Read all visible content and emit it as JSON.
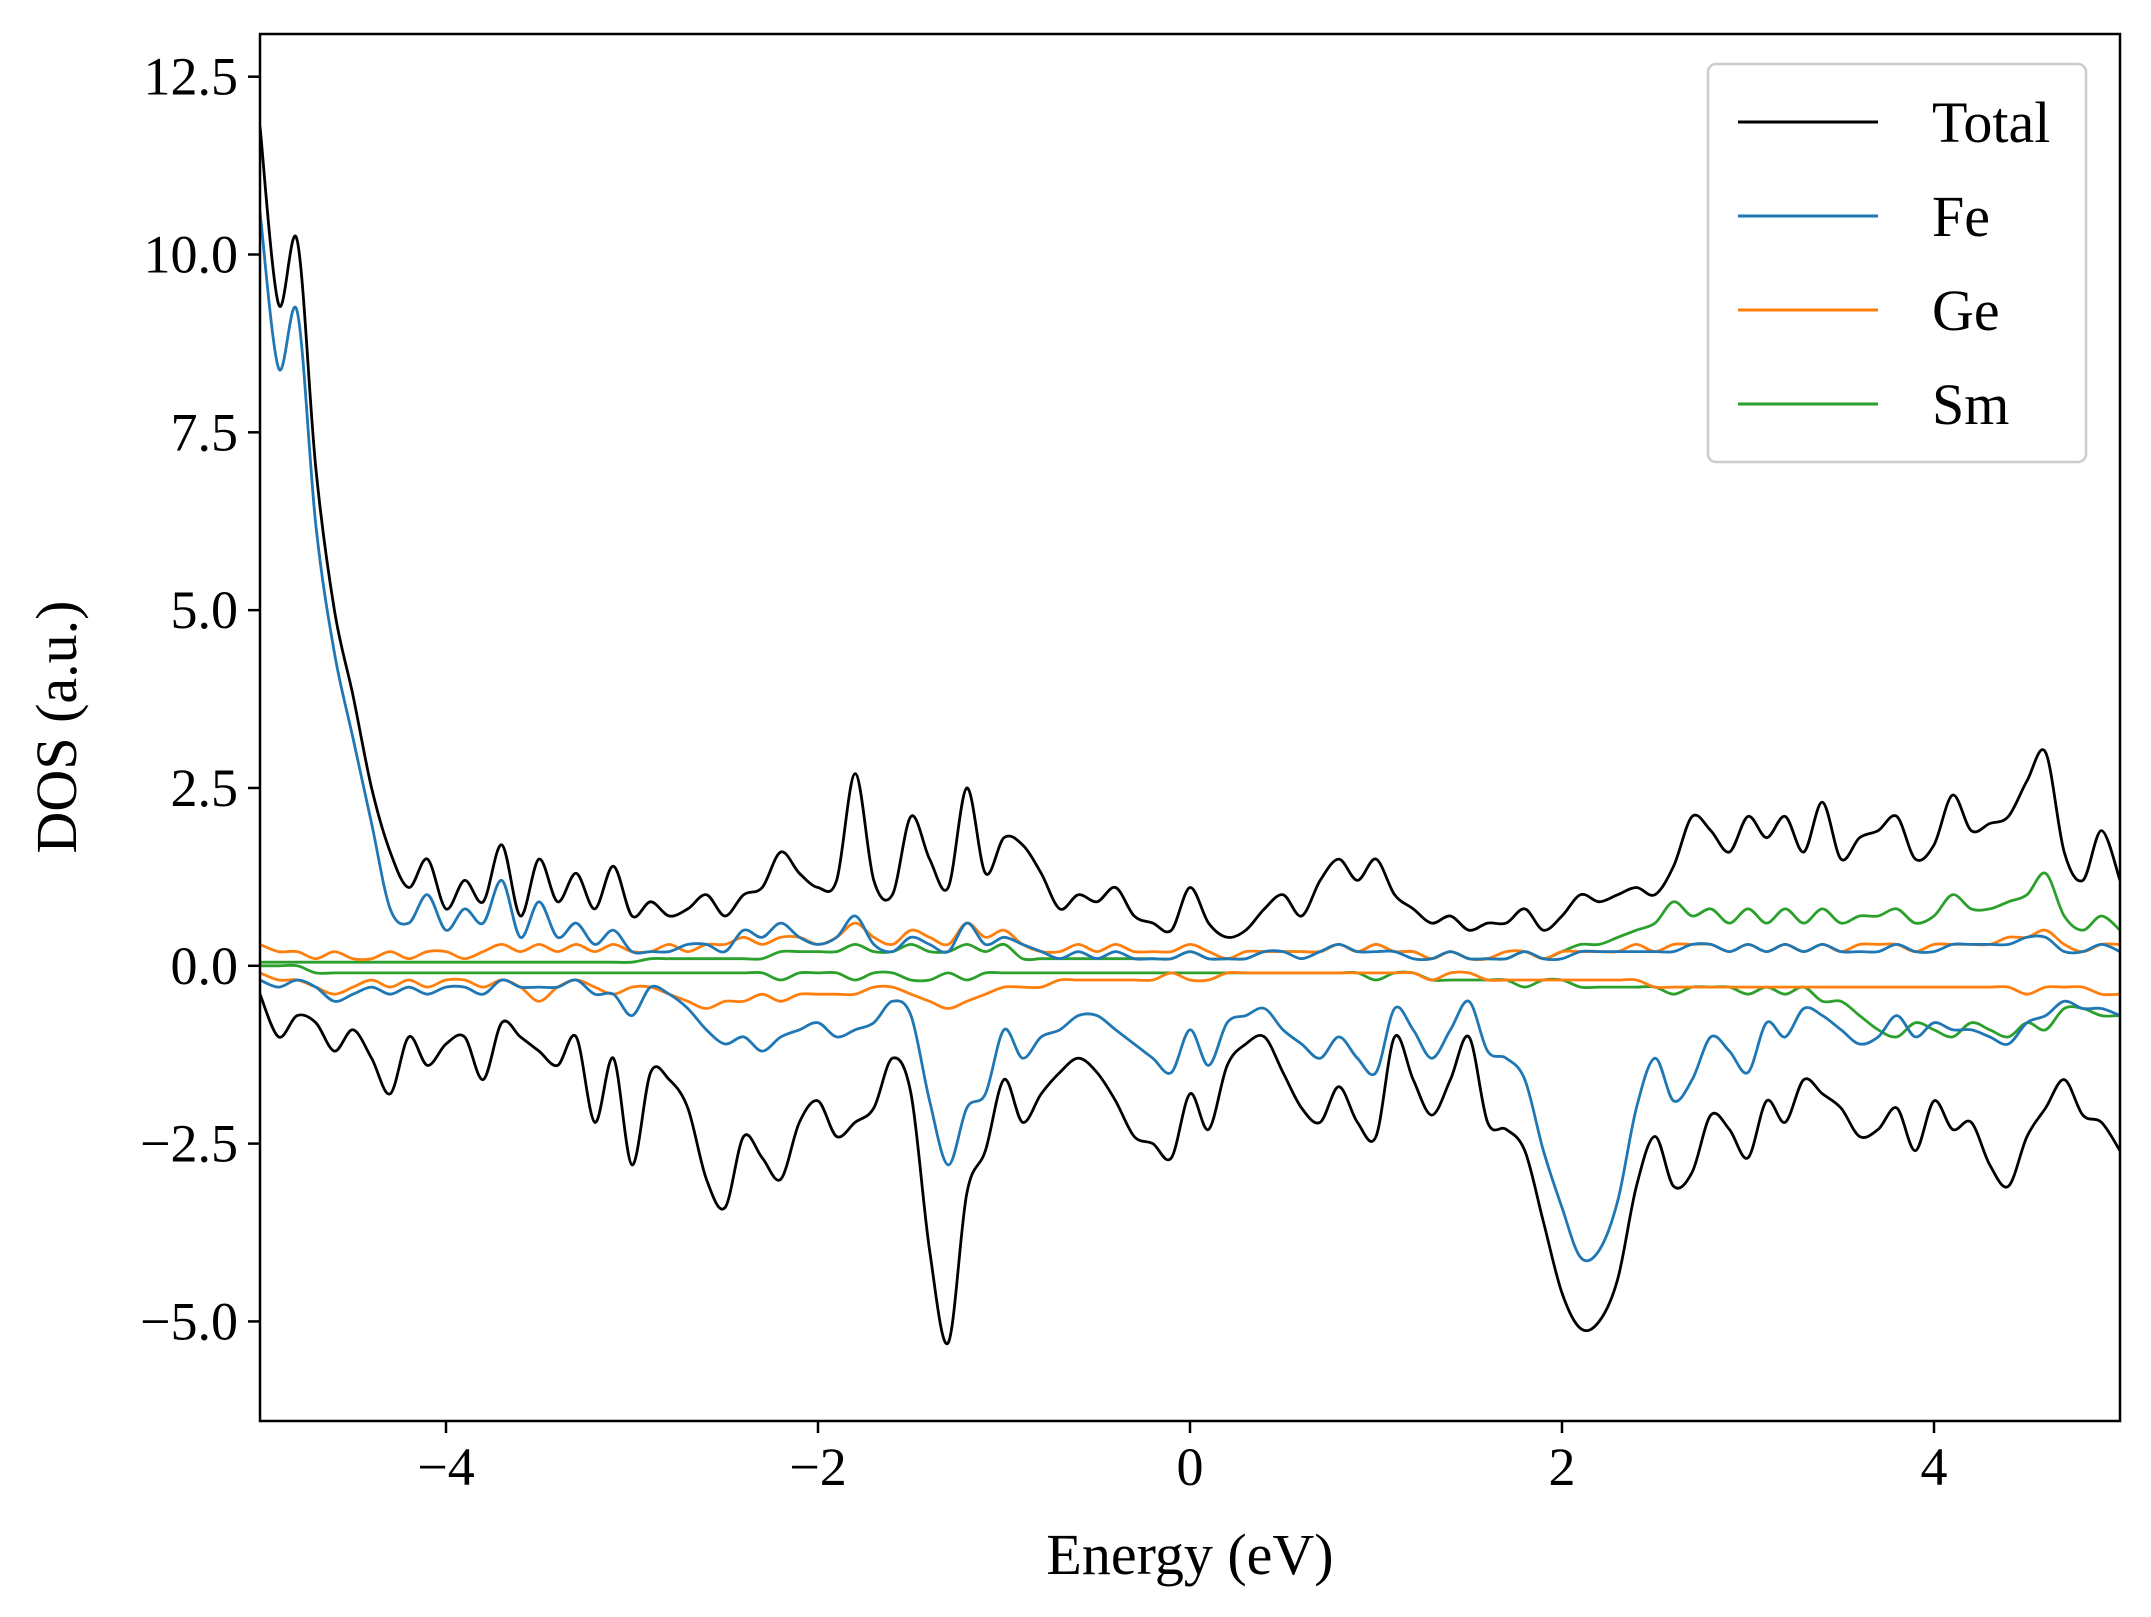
{
  "chart_data": {
    "type": "line",
    "xlabel": "Energy (eV)",
    "ylabel": "DOS (a.u.)",
    "xlim": [
      -5.0,
      5.0
    ],
    "ylim": [
      -6.4,
      13.1
    ],
    "grid": false,
    "legend_position": "top-right",
    "x_ticks": [
      -4,
      -2,
      0,
      2,
      4
    ],
    "x_tick_labels": [
      "−4",
      "−2",
      "0",
      "2",
      "4"
    ],
    "y_ticks": [
      -5.0,
      -2.5,
      0.0,
      2.5,
      5.0,
      7.5,
      10.0,
      12.5
    ],
    "y_tick_labels": [
      "−5.0",
      "−2.5",
      "0.0",
      "2.5",
      "5.0",
      "7.5",
      "10.0",
      "12.5"
    ],
    "x": [
      -5.0,
      -4.9,
      -4.8,
      -4.7,
      -4.6,
      -4.5,
      -4.4,
      -4.3,
      -4.2,
      -4.1,
      -4.0,
      -3.9,
      -3.8,
      -3.7,
      -3.6,
      -3.5,
      -3.4,
      -3.3,
      -3.2,
      -3.1,
      -3.0,
      -2.9,
      -2.8,
      -2.7,
      -2.6,
      -2.5,
      -2.4,
      -2.3,
      -2.2,
      -2.1,
      -2.0,
      -1.9,
      -1.8,
      -1.7,
      -1.6,
      -1.5,
      -1.4,
      -1.3,
      -1.2,
      -1.1,
      -1.0,
      -0.9,
      -0.8,
      -0.7,
      -0.6,
      -0.5,
      -0.4,
      -0.3,
      -0.2,
      -0.1,
      0.0,
      0.1,
      0.2,
      0.3,
      0.4,
      0.5,
      0.6,
      0.7,
      0.8,
      0.9,
      1.0,
      1.1,
      1.2,
      1.3,
      1.4,
      1.5,
      1.6,
      1.7,
      1.8,
      1.9,
      2.0,
      2.1,
      2.2,
      2.3,
      2.4,
      2.5,
      2.6,
      2.7,
      2.8,
      2.9,
      3.0,
      3.1,
      3.2,
      3.3,
      3.4,
      3.5,
      3.6,
      3.7,
      3.8,
      3.9,
      4.0,
      4.1,
      4.2,
      4.3,
      4.4,
      4.5,
      4.6,
      4.7,
      4.8,
      4.9,
      5.0
    ],
    "series": [
      {
        "name": "Total",
        "color": "#000000",
        "values_up": [
          11.8,
          9.3,
          10.2,
          7.0,
          5.0,
          3.8,
          2.5,
          1.6,
          1.1,
          1.5,
          0.8,
          1.2,
          0.9,
          1.7,
          0.7,
          1.5,
          0.9,
          1.3,
          0.8,
          1.4,
          0.7,
          0.9,
          0.7,
          0.8,
          1.0,
          0.7,
          1.0,
          1.1,
          1.6,
          1.3,
          1.1,
          1.2,
          2.7,
          1.2,
          1.0,
          2.1,
          1.5,
          1.1,
          2.5,
          1.3,
          1.8,
          1.7,
          1.3,
          0.8,
          1.0,
          0.9,
          1.1,
          0.7,
          0.6,
          0.5,
          1.1,
          0.6,
          0.4,
          0.5,
          0.8,
          1.0,
          0.7,
          1.2,
          1.5,
          1.2,
          1.5,
          1.0,
          0.8,
          0.6,
          0.7,
          0.5,
          0.6,
          0.6,
          0.8,
          0.5,
          0.7,
          1.0,
          0.9,
          1.0,
          1.1,
          1.0,
          1.4,
          2.1,
          1.9,
          1.6,
          2.1,
          1.8,
          2.1,
          1.6,
          2.3,
          1.5,
          1.8,
          1.9,
          2.1,
          1.5,
          1.7,
          2.4,
          1.9,
          2.0,
          2.1,
          2.6,
          3.0,
          1.6,
          1.2,
          1.9,
          1.2
        ],
        "values_down": [
          -0.4,
          -1.0,
          -0.7,
          -0.8,
          -1.2,
          -0.9,
          -1.3,
          -1.8,
          -1.0,
          -1.4,
          -1.1,
          -1.0,
          -1.6,
          -0.8,
          -1.0,
          -1.2,
          -1.4,
          -1.0,
          -2.2,
          -1.3,
          -2.8,
          -1.5,
          -1.6,
          -2.0,
          -3.0,
          -3.4,
          -2.4,
          -2.7,
          -3.0,
          -2.2,
          -1.9,
          -2.4,
          -2.2,
          -2.0,
          -1.3,
          -1.8,
          -4.0,
          -5.3,
          -3.2,
          -2.6,
          -1.6,
          -2.2,
          -1.8,
          -1.5,
          -1.3,
          -1.5,
          -1.9,
          -2.4,
          -2.5,
          -2.7,
          -1.8,
          -2.3,
          -1.4,
          -1.1,
          -1.0,
          -1.5,
          -2.0,
          -2.2,
          -1.7,
          -2.2,
          -2.4,
          -1.0,
          -1.6,
          -2.1,
          -1.6,
          -1.0,
          -2.2,
          -2.3,
          -2.6,
          -3.6,
          -4.6,
          -5.1,
          -5.0,
          -4.4,
          -3.1,
          -2.4,
          -3.1,
          -2.9,
          -2.1,
          -2.3,
          -2.7,
          -1.9,
          -2.2,
          -1.6,
          -1.8,
          -2.0,
          -2.4,
          -2.3,
          -2.0,
          -2.6,
          -1.9,
          -2.3,
          -2.2,
          -2.8,
          -3.1,
          -2.4,
          -2.0,
          -1.6,
          -2.1,
          -2.2,
          -2.6
        ]
      },
      {
        "name": "Fe",
        "color": "#1f77b4",
        "values_up": [
          10.6,
          8.4,
          9.2,
          6.2,
          4.4,
          3.2,
          2.0,
          0.8,
          0.6,
          1.0,
          0.5,
          0.8,
          0.6,
          1.2,
          0.4,
          0.9,
          0.4,
          0.6,
          0.3,
          0.5,
          0.2,
          0.2,
          0.2,
          0.3,
          0.3,
          0.2,
          0.5,
          0.4,
          0.6,
          0.4,
          0.3,
          0.4,
          0.7,
          0.3,
          0.2,
          0.4,
          0.3,
          0.2,
          0.6,
          0.3,
          0.4,
          0.3,
          0.2,
          0.1,
          0.2,
          0.1,
          0.2,
          0.1,
          0.1,
          0.1,
          0.2,
          0.1,
          0.1,
          0.1,
          0.2,
          0.2,
          0.1,
          0.2,
          0.3,
          0.2,
          0.2,
          0.2,
          0.1,
          0.1,
          0.2,
          0.1,
          0.1,
          0.1,
          0.2,
          0.1,
          0.1,
          0.2,
          0.2,
          0.2,
          0.2,
          0.2,
          0.2,
          0.3,
          0.3,
          0.2,
          0.3,
          0.2,
          0.3,
          0.2,
          0.3,
          0.2,
          0.2,
          0.2,
          0.3,
          0.2,
          0.2,
          0.3,
          0.3,
          0.3,
          0.3,
          0.4,
          0.4,
          0.2,
          0.2,
          0.3,
          0.2
        ],
        "values_down": [
          -0.2,
          -0.3,
          -0.2,
          -0.3,
          -0.5,
          -0.4,
          -0.3,
          -0.4,
          -0.3,
          -0.4,
          -0.3,
          -0.3,
          -0.4,
          -0.2,
          -0.3,
          -0.3,
          -0.3,
          -0.2,
          -0.4,
          -0.4,
          -0.7,
          -0.3,
          -0.4,
          -0.6,
          -0.9,
          -1.1,
          -1.0,
          -1.2,
          -1.0,
          -0.9,
          -0.8,
          -1.0,
          -0.9,
          -0.8,
          -0.5,
          -0.7,
          -1.9,
          -2.8,
          -2.0,
          -1.8,
          -0.9,
          -1.3,
          -1.0,
          -0.9,
          -0.7,
          -0.7,
          -0.9,
          -1.1,
          -1.3,
          -1.5,
          -0.9,
          -1.4,
          -0.8,
          -0.7,
          -0.6,
          -0.9,
          -1.1,
          -1.3,
          -1.0,
          -1.3,
          -1.5,
          -0.6,
          -0.9,
          -1.3,
          -0.9,
          -0.5,
          -1.2,
          -1.3,
          -1.6,
          -2.6,
          -3.4,
          -4.1,
          -4.0,
          -3.3,
          -2.0,
          -1.3,
          -1.9,
          -1.6,
          -1.0,
          -1.2,
          -1.5,
          -0.8,
          -1.0,
          -0.6,
          -0.7,
          -0.9,
          -1.1,
          -1.0,
          -0.7,
          -1.0,
          -0.8,
          -0.9,
          -0.9,
          -1.0,
          -1.1,
          -0.8,
          -0.7,
          -0.5,
          -0.6,
          -0.6,
          -0.7
        ]
      },
      {
        "name": "Ge",
        "color": "#ff7f0e",
        "values_up": [
          0.3,
          0.2,
          0.2,
          0.1,
          0.2,
          0.1,
          0.1,
          0.2,
          0.1,
          0.2,
          0.2,
          0.1,
          0.2,
          0.3,
          0.2,
          0.3,
          0.2,
          0.3,
          0.2,
          0.3,
          0.2,
          0.2,
          0.3,
          0.2,
          0.3,
          0.3,
          0.4,
          0.3,
          0.4,
          0.4,
          0.3,
          0.4,
          0.6,
          0.4,
          0.3,
          0.5,
          0.4,
          0.3,
          0.6,
          0.4,
          0.5,
          0.3,
          0.2,
          0.2,
          0.3,
          0.2,
          0.3,
          0.2,
          0.2,
          0.2,
          0.3,
          0.2,
          0.1,
          0.2,
          0.2,
          0.2,
          0.2,
          0.2,
          0.3,
          0.2,
          0.3,
          0.2,
          0.2,
          0.1,
          0.2,
          0.1,
          0.1,
          0.2,
          0.2,
          0.1,
          0.2,
          0.2,
          0.2,
          0.2,
          0.3,
          0.2,
          0.3,
          0.3,
          0.3,
          0.2,
          0.3,
          0.2,
          0.3,
          0.2,
          0.3,
          0.2,
          0.3,
          0.3,
          0.3,
          0.2,
          0.3,
          0.3,
          0.3,
          0.3,
          0.4,
          0.4,
          0.5,
          0.3,
          0.2,
          0.3,
          0.3
        ],
        "values_down": [
          -0.1,
          -0.2,
          -0.2,
          -0.3,
          -0.4,
          -0.3,
          -0.2,
          -0.3,
          -0.2,
          -0.3,
          -0.2,
          -0.2,
          -0.3,
          -0.2,
          -0.3,
          -0.5,
          -0.3,
          -0.2,
          -0.3,
          -0.4,
          -0.3,
          -0.3,
          -0.4,
          -0.5,
          -0.6,
          -0.5,
          -0.5,
          -0.4,
          -0.5,
          -0.4,
          -0.4,
          -0.4,
          -0.4,
          -0.3,
          -0.3,
          -0.4,
          -0.5,
          -0.6,
          -0.5,
          -0.4,
          -0.3,
          -0.3,
          -0.3,
          -0.2,
          -0.2,
          -0.2,
          -0.2,
          -0.2,
          -0.2,
          -0.1,
          -0.2,
          -0.2,
          -0.1,
          -0.1,
          -0.1,
          -0.1,
          -0.1,
          -0.1,
          -0.1,
          -0.1,
          -0.1,
          -0.1,
          -0.1,
          -0.2,
          -0.1,
          -0.1,
          -0.2,
          -0.2,
          -0.2,
          -0.2,
          -0.2,
          -0.2,
          -0.2,
          -0.2,
          -0.2,
          -0.3,
          -0.3,
          -0.3,
          -0.3,
          -0.3,
          -0.3,
          -0.3,
          -0.3,
          -0.3,
          -0.3,
          -0.3,
          -0.3,
          -0.3,
          -0.3,
          -0.3,
          -0.3,
          -0.3,
          -0.3,
          -0.3,
          -0.3,
          -0.4,
          -0.3,
          -0.3,
          -0.3,
          -0.4,
          -0.4
        ]
      },
      {
        "name": "Sm",
        "color": "#2ca02c",
        "values_up": [
          0.05,
          0.05,
          0.05,
          0.05,
          0.05,
          0.05,
          0.05,
          0.05,
          0.05,
          0.05,
          0.05,
          0.05,
          0.05,
          0.05,
          0.05,
          0.05,
          0.05,
          0.05,
          0.05,
          0.05,
          0.05,
          0.1,
          0.1,
          0.1,
          0.1,
          0.1,
          0.1,
          0.1,
          0.2,
          0.2,
          0.2,
          0.2,
          0.3,
          0.2,
          0.2,
          0.3,
          0.2,
          0.2,
          0.3,
          0.2,
          0.3,
          0.1,
          0.1,
          0.1,
          0.1,
          0.1,
          0.1,
          0.1,
          0.1,
          0.1,
          0.2,
          0.1,
          0.1,
          0.1,
          0.2,
          0.2,
          0.2,
          0.2,
          0.3,
          0.2,
          0.3,
          0.2,
          0.2,
          0.1,
          0.2,
          0.1,
          0.1,
          0.1,
          0.2,
          0.1,
          0.2,
          0.3,
          0.3,
          0.4,
          0.5,
          0.6,
          0.9,
          0.7,
          0.8,
          0.6,
          0.8,
          0.6,
          0.8,
          0.6,
          0.8,
          0.6,
          0.7,
          0.7,
          0.8,
          0.6,
          0.7,
          1.0,
          0.8,
          0.8,
          0.9,
          1.0,
          1.3,
          0.7,
          0.5,
          0.7,
          0.5
        ],
        "values_down": [
          0.0,
          0.0,
          0.0,
          -0.1,
          -0.1,
          -0.1,
          -0.1,
          -0.1,
          -0.1,
          -0.1,
          -0.1,
          -0.1,
          -0.1,
          -0.1,
          -0.1,
          -0.1,
          -0.1,
          -0.1,
          -0.1,
          -0.1,
          -0.1,
          -0.1,
          -0.1,
          -0.1,
          -0.1,
          -0.1,
          -0.1,
          -0.1,
          -0.2,
          -0.1,
          -0.1,
          -0.1,
          -0.2,
          -0.1,
          -0.1,
          -0.2,
          -0.2,
          -0.1,
          -0.2,
          -0.1,
          -0.1,
          -0.1,
          -0.1,
          -0.1,
          -0.1,
          -0.1,
          -0.1,
          -0.1,
          -0.1,
          -0.1,
          -0.1,
          -0.1,
          -0.1,
          -0.1,
          -0.1,
          -0.1,
          -0.1,
          -0.1,
          -0.1,
          -0.1,
          -0.2,
          -0.1,
          -0.1,
          -0.2,
          -0.2,
          -0.2,
          -0.2,
          -0.2,
          -0.3,
          -0.2,
          -0.2,
          -0.3,
          -0.3,
          -0.3,
          -0.3,
          -0.3,
          -0.4,
          -0.3,
          -0.3,
          -0.3,
          -0.4,
          -0.3,
          -0.4,
          -0.3,
          -0.5,
          -0.5,
          -0.7,
          -0.9,
          -1.0,
          -0.8,
          -0.9,
          -1.0,
          -0.8,
          -0.9,
          -1.0,
          -0.8,
          -0.9,
          -0.6,
          -0.6,
          -0.7,
          -0.7
        ]
      }
    ]
  }
}
